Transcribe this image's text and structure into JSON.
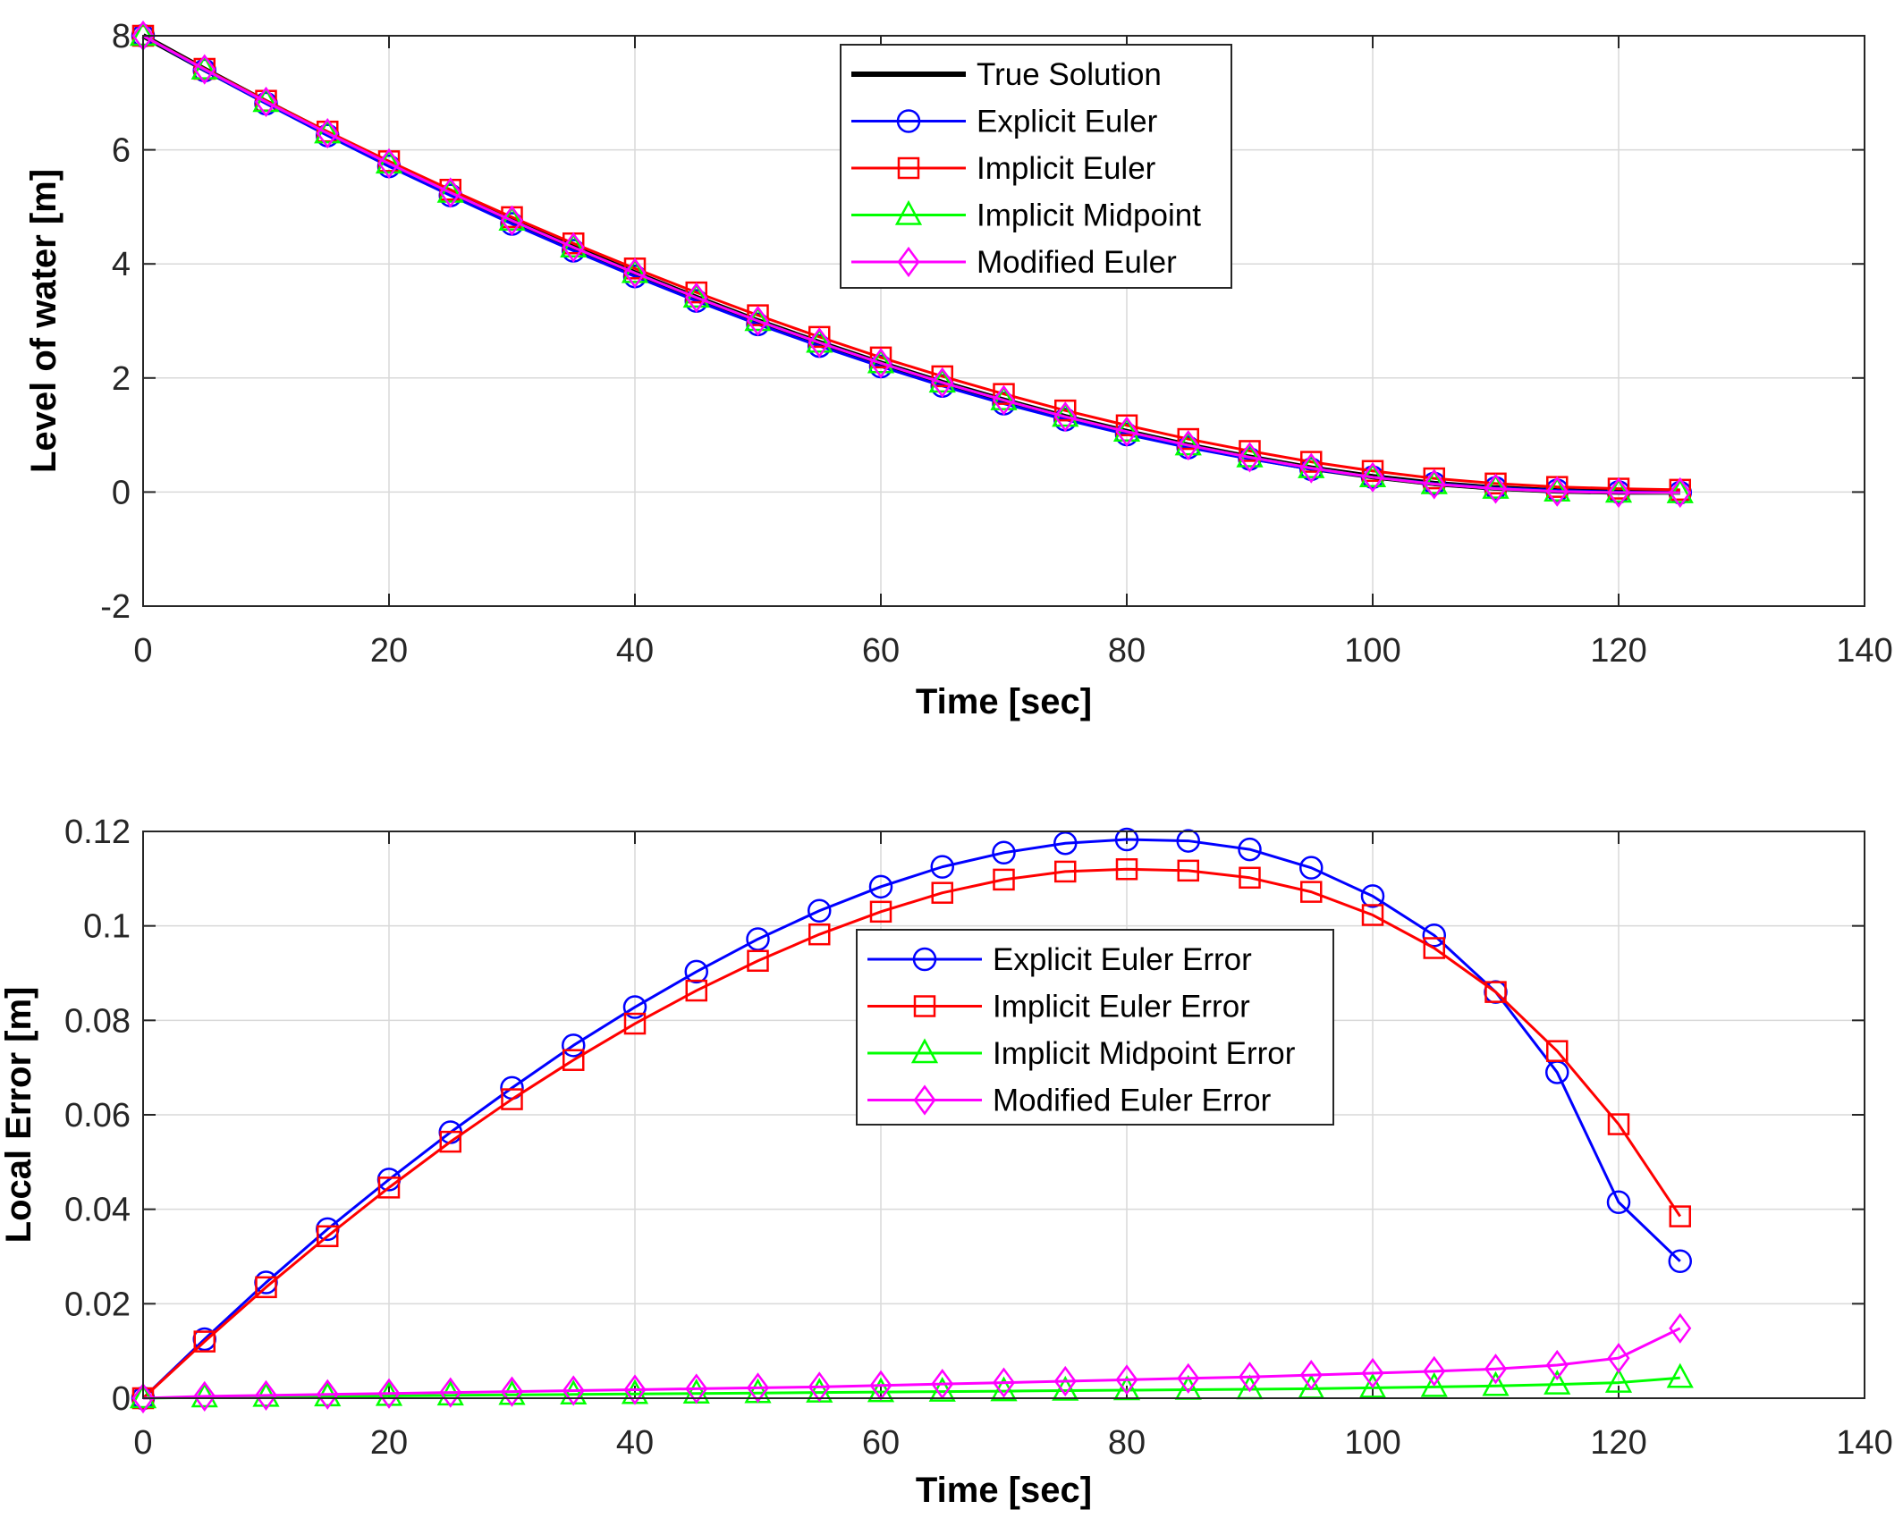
{
  "chart_data": [
    {
      "type": "line",
      "title": "",
      "xlabel": "Time [sec]",
      "ylabel": "Level of water [m]",
      "xlim": [
        0,
        140
      ],
      "ylim": [
        -2,
        8
      ],
      "xticks": [
        0,
        20,
        40,
        60,
        80,
        100,
        120,
        140
      ],
      "yticks": [
        -2,
        0,
        2,
        4,
        6,
        8
      ],
      "grid": true,
      "legend_position": "top-center",
      "x": [
        0,
        5,
        10,
        15,
        20,
        25,
        30,
        35,
        40,
        45,
        50,
        55,
        60,
        65,
        70,
        75,
        80,
        85,
        90,
        95,
        100,
        105,
        110,
        115,
        120,
        125
      ],
      "series": [
        {
          "name": "True Solution",
          "color": "#000000",
          "marker": "none",
          "values": [
            8.0,
            7.41,
            6.84,
            6.29,
            5.76,
            5.25,
            4.76,
            4.29,
            3.84,
            3.41,
            3.0,
            2.62,
            2.26,
            1.92,
            1.61,
            1.32,
            1.06,
            0.82,
            0.61,
            0.42,
            0.27,
            0.15,
            0.07,
            0.02,
            0.0,
            0.0
          ]
        },
        {
          "name": "Explicit Euler",
          "color": "#0000ff",
          "marker": "circle",
          "values": [
            8.0,
            7.39,
            6.81,
            6.25,
            5.71,
            5.2,
            4.7,
            4.23,
            3.78,
            3.35,
            2.94,
            2.56,
            2.2,
            1.86,
            1.55,
            1.27,
            1.01,
            0.78,
            0.58,
            0.4,
            0.26,
            0.15,
            0.07,
            0.03,
            0.0,
            -0.01
          ]
        },
        {
          "name": "Implicit Euler",
          "color": "#ff0000",
          "marker": "square",
          "values": [
            8.0,
            7.42,
            6.86,
            6.32,
            5.8,
            5.3,
            4.82,
            4.36,
            3.92,
            3.5,
            3.1,
            2.72,
            2.36,
            2.03,
            1.72,
            1.43,
            1.17,
            0.93,
            0.72,
            0.53,
            0.37,
            0.24,
            0.15,
            0.09,
            0.06,
            0.04
          ]
        },
        {
          "name": "Implicit Midpoint",
          "color": "#00ff00",
          "marker": "triangle",
          "values": [
            8.0,
            7.41,
            6.84,
            6.29,
            5.76,
            5.25,
            4.76,
            4.29,
            3.84,
            3.41,
            3.0,
            2.62,
            2.26,
            1.92,
            1.61,
            1.32,
            1.06,
            0.82,
            0.61,
            0.42,
            0.26,
            0.14,
            0.06,
            0.01,
            -0.01,
            -0.02
          ]
        },
        {
          "name": "Modified Euler",
          "color": "#ff00ff",
          "marker": "diamond",
          "values": [
            8.0,
            7.41,
            6.84,
            6.29,
            5.76,
            5.25,
            4.76,
            4.29,
            3.84,
            3.41,
            3.0,
            2.62,
            2.26,
            1.92,
            1.61,
            1.32,
            1.06,
            0.82,
            0.61,
            0.42,
            0.26,
            0.14,
            0.06,
            0.01,
            -0.01,
            -0.01
          ]
        }
      ]
    },
    {
      "type": "line",
      "title": "",
      "xlabel": "Time [sec]",
      "ylabel": "Local Error [m]",
      "xlim": [
        0,
        140
      ],
      "ylim": [
        0,
        0.12
      ],
      "xticks": [
        0,
        20,
        40,
        60,
        80,
        100,
        120,
        140
      ],
      "yticks": [
        0,
        0.02,
        0.04,
        0.06,
        0.08,
        0.1,
        0.12
      ],
      "grid": true,
      "legend_position": "center",
      "x": [
        0,
        5,
        10,
        15,
        20,
        25,
        30,
        35,
        40,
        45,
        50,
        55,
        60,
        65,
        70,
        75,
        80,
        85,
        90,
        95,
        100,
        105,
        110,
        115,
        120,
        125
      ],
      "series": [
        {
          "name": "Explicit Euler Error",
          "color": "#0000ff",
          "marker": "circle",
          "values": [
            0,
            0.0125,
            0.0245,
            0.0358,
            0.0463,
            0.0563,
            0.0657,
            0.0747,
            0.0828,
            0.0903,
            0.0972,
            0.1032,
            0.1083,
            0.1125,
            0.1155,
            0.1175,
            0.1183,
            0.118,
            0.1162,
            0.1123,
            0.1063,
            0.098,
            0.086,
            0.069,
            0.0415,
            0.029
          ]
        },
        {
          "name": "Implicit Euler Error",
          "color": "#ff0000",
          "marker": "square",
          "values": [
            0,
            0.012,
            0.0235,
            0.0343,
            0.0446,
            0.0543,
            0.0633,
            0.0716,
            0.0793,
            0.0863,
            0.0926,
            0.0982,
            0.103,
            0.107,
            0.1098,
            0.1115,
            0.112,
            0.1117,
            0.1102,
            0.1072,
            0.1023,
            0.0953,
            0.086,
            0.0735,
            0.058,
            0.0385
          ]
        },
        {
          "name": "Implicit Midpoint Error",
          "color": "#00ff00",
          "marker": "triangle",
          "values": [
            0,
            0.0002,
            0.0003,
            0.0004,
            0.0005,
            0.0006,
            0.0007,
            0.0008,
            0.0009,
            0.001,
            0.0011,
            0.0012,
            0.0013,
            0.0014,
            0.0015,
            0.0016,
            0.0017,
            0.0018,
            0.0019,
            0.002,
            0.0022,
            0.0024,
            0.0026,
            0.0029,
            0.0033,
            0.0043
          ]
        },
        {
          "name": "Modified Euler Error",
          "color": "#ff00ff",
          "marker": "diamond",
          "values": [
            0,
            0.0004,
            0.0006,
            0.0008,
            0.001,
            0.0012,
            0.0014,
            0.0016,
            0.0018,
            0.002,
            0.0022,
            0.0024,
            0.0027,
            0.003,
            0.0033,
            0.0036,
            0.0039,
            0.0042,
            0.0045,
            0.0049,
            0.0053,
            0.0057,
            0.0062,
            0.007,
            0.0085,
            0.0148
          ]
        }
      ]
    }
  ]
}
